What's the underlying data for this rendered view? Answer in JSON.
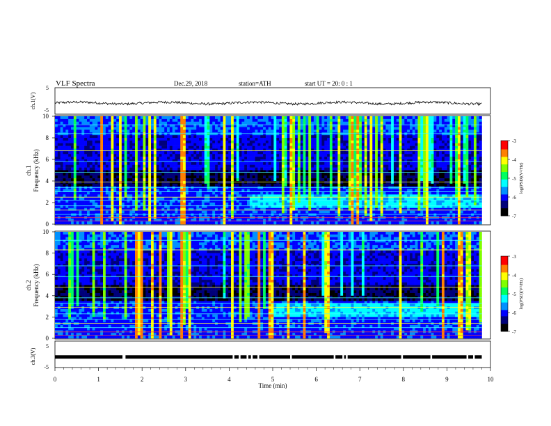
{
  "header": {
    "title": "VLF  Spectra",
    "date": "Dec.29, 2018",
    "station": "station=ATH",
    "start": "start  UT  =   20: 0  : 1"
  },
  "chart_data": [
    {
      "type": "line",
      "panel": "ch1-voltage",
      "ylabel": "ch.1(V)",
      "ylim": [
        -5,
        5
      ],
      "yticks": [
        "5",
        "-5"
      ],
      "series": [
        {
          "values_description_level": -0.8,
          "x_start_min": 0,
          "x_end_min": 9.8
        }
      ]
    },
    {
      "type": "heatmap",
      "panel": "ch1-spectrogram",
      "ylabel": "ch.1\nFrequency  (kHz)",
      "ylim": [
        0,
        10
      ],
      "yticks": [
        "0",
        "2",
        "4",
        "6",
        "8",
        "10"
      ],
      "xlim_min": [
        0,
        9.8
      ],
      "colorbar": {
        "label": "log(PSD)(V²/Hz)",
        "range": [
          -7,
          -3
        ],
        "ticks": [
          "-3",
          "-4",
          "-5",
          "-6",
          "-7"
        ]
      },
      "bands_khz": [
        0.3,
        0.6,
        0.9,
        1.3,
        1.7,
        2.2,
        2.5,
        3.0,
        3.4,
        3.9,
        4.8,
        5.8,
        6.8,
        8.4,
        9.2
      ],
      "enhanced_band": {
        "from_min": 4.5,
        "to_min": 9.8,
        "low_khz": 1.6,
        "high_khz": 2.8
      }
    },
    {
      "type": "heatmap",
      "panel": "ch2-spectrogram",
      "ylabel": "ch.2\nFrequency  (kHz)",
      "ylim": [
        0,
        10
      ],
      "yticks": [
        "0",
        "2",
        "4",
        "6",
        "8",
        "10"
      ],
      "xlim_min": [
        0,
        9.8
      ],
      "colorbar": {
        "label": "log(PSD)(V²/Hz)",
        "range": [
          -7,
          -3
        ],
        "ticks": [
          "-3",
          "-4",
          "-5",
          "-6",
          "-7"
        ]
      },
      "bands_khz": [
        0.3,
        0.6,
        1.0,
        1.4,
        1.8,
        2.3,
        2.9,
        3.3,
        3.8,
        4.8,
        5.8,
        6.8,
        8.3,
        9.2
      ],
      "enhanced_band": {
        "from_min": 5.0,
        "to_min": 9.8,
        "low_khz": 2.0,
        "high_khz": 3.2
      }
    },
    {
      "type": "line",
      "panel": "ch3-voltage",
      "ylabel": "ch.3(V)",
      "ylim": [
        -5,
        5
      ],
      "yticks": [
        "5",
        "-5"
      ],
      "series": [
        {
          "level": -1.0,
          "x_start_min": 0,
          "x_end_min": 9.8,
          "gaps_min": [
            1.55,
            1.58,
            4.08,
            4.22,
            4.4,
            4.5,
            4.65,
            5.4,
            6.4,
            6.6,
            6.68,
            7.95,
            8.62,
            9.45,
            9.6
          ]
        }
      ]
    }
  ],
  "xaxis": {
    "label": "Time  (min)",
    "xlim": [
      0,
      10
    ],
    "ticks": [
      "0",
      "1",
      "2",
      "3",
      "4",
      "5",
      "6",
      "7",
      "8",
      "9",
      "10"
    ]
  },
  "colors": {
    "scale": [
      "#000000",
      "#00007a",
      "#0000ff",
      "#0090ff",
      "#00ffff",
      "#00ff60",
      "#80ff00",
      "#ffff00",
      "#ff8000",
      "#ff0000",
      "#ffffff"
    ]
  }
}
